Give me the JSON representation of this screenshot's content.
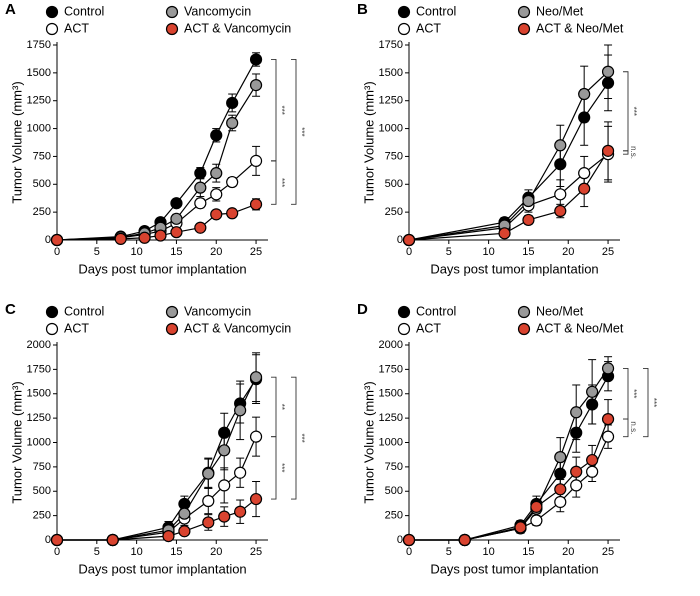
{
  "chart_data": [
    {
      "type": "line",
      "panel": "A",
      "x": [
        0,
        8,
        11,
        13,
        15,
        18,
        20,
        22,
        25
      ],
      "xlim": [
        0,
        26.5
      ],
      "xticks": [
        0,
        5,
        10,
        15,
        20,
        25
      ],
      "ylim": [
        0,
        1750
      ],
      "yticks": [
        0,
        250,
        500,
        750,
        1000,
        1250,
        1500,
        1750
      ],
      "x_label": "Days post tumor implantation",
      "y_label": "Tumor Volume (mm³)",
      "series": [
        {
          "name": "Control",
          "color": "#000000",
          "values": [
            0,
            30,
            80,
            160,
            330,
            600,
            940,
            1230,
            1620
          ],
          "errors": [
            0,
            10,
            15,
            25,
            30,
            50,
            60,
            80,
            60
          ]
        },
        {
          "name": "ACT",
          "color": "#ffffff",
          "values": [
            0,
            20,
            50,
            80,
            150,
            330,
            410,
            520,
            710
          ],
          "errors": [
            0,
            10,
            15,
            20,
            30,
            40,
            60,
            40,
            130
          ]
        },
        {
          "name": "Vancomycin",
          "color": "#999999",
          "values": [
            0,
            25,
            60,
            110,
            190,
            470,
            600,
            1050,
            1390
          ],
          "errors": [
            0,
            10,
            15,
            20,
            40,
            80,
            80,
            70,
            100
          ]
        },
        {
          "name": "ACT & Vancomycin",
          "color": "#d9432f",
          "values": [
            0,
            10,
            20,
            40,
            70,
            110,
            230,
            240,
            320
          ],
          "errors": [
            0,
            5,
            10,
            10,
            15,
            20,
            30,
            30,
            50
          ]
        }
      ],
      "brackets": [
        {
          "label": "***",
          "between": [
            0,
            1
          ]
        },
        {
          "label": "***",
          "between": [
            1,
            3
          ]
        },
        {
          "label": "***",
          "between": [
            0,
            3
          ]
        }
      ]
    },
    {
      "type": "line",
      "panel": "B",
      "x": [
        0,
        12,
        15,
        19,
        22,
        25
      ],
      "xlim": [
        0,
        26.5
      ],
      "xticks": [
        0,
        5,
        10,
        15,
        20,
        25
      ],
      "ylim": [
        0,
        1750
      ],
      "yticks": [
        0,
        250,
        500,
        750,
        1000,
        1250,
        1500,
        1750
      ],
      "x_label": "Days post tumor implantation",
      "y_label": "Tumor Volume (mm³)",
      "series": [
        {
          "name": "Control",
          "color": "#000000",
          "values": [
            0,
            160,
            380,
            680,
            1100,
            1410
          ],
          "errors": [
            0,
            40,
            70,
            200,
            250,
            250
          ]
        },
        {
          "name": "ACT",
          "color": "#ffffff",
          "values": [
            0,
            110,
            310,
            410,
            600,
            770
          ],
          "errors": [
            0,
            30,
            60,
            130,
            150,
            250
          ]
        },
        {
          "name": "Neo/Met",
          "color": "#999999",
          "values": [
            0,
            130,
            350,
            850,
            1310,
            1510
          ],
          "errors": [
            0,
            40,
            60,
            180,
            250,
            240
          ]
        },
        {
          "name": "ACT & Neo/Met",
          "color": "#d9432f",
          "values": [
            0,
            60,
            180,
            260,
            460,
            800
          ],
          "errors": [
            0,
            20,
            40,
            60,
            160,
            260
          ]
        }
      ],
      "brackets": [
        {
          "label": "***",
          "between": [
            2,
            3
          ]
        },
        {
          "label": "n.s.",
          "between": [
            3,
            1
          ]
        }
      ]
    },
    {
      "type": "line",
      "panel": "C",
      "x": [
        0,
        7,
        14,
        16,
        19,
        21,
        23,
        25
      ],
      "xlim": [
        0,
        26.5
      ],
      "xticks": [
        0,
        5,
        10,
        15,
        20,
        25
      ],
      "ylim": [
        0,
        2000
      ],
      "yticks": [
        0,
        250,
        500,
        750,
        1000,
        1250,
        1500,
        1750,
        2000
      ],
      "x_label": "Days post tumor implantation",
      "y_label": "Tumor Volume (mm³)",
      "series": [
        {
          "name": "Control",
          "color": "#000000",
          "values": [
            0,
            0,
            130,
            370,
            690,
            1100,
            1400,
            1650
          ],
          "errors": [
            0,
            0,
            60,
            80,
            150,
            200,
            200,
            250
          ]
        },
        {
          "name": "ACT",
          "color": "#ffffff",
          "values": [
            0,
            0,
            80,
            220,
            400,
            560,
            690,
            1060
          ],
          "errors": [
            0,
            0,
            30,
            70,
            130,
            180,
            150,
            200
          ]
        },
        {
          "name": "Vancomycin",
          "color": "#999999",
          "values": [
            0,
            0,
            100,
            270,
            680,
            920,
            1330,
            1670
          ],
          "errors": [
            0,
            0,
            40,
            60,
            150,
            200,
            300,
            250
          ]
        },
        {
          "name": "ACT & Vancomycin",
          "color": "#d9432f",
          "values": [
            0,
            0,
            40,
            90,
            180,
            240,
            290,
            420
          ],
          "errors": [
            0,
            0,
            20,
            40,
            80,
            100,
            120,
            180
          ]
        }
      ],
      "brackets": [
        {
          "label": "**",
          "between": [
            2,
            1
          ]
        },
        {
          "label": "***",
          "between": [
            1,
            3
          ]
        },
        {
          "label": "***",
          "between": [
            2,
            3
          ]
        }
      ]
    },
    {
      "type": "line",
      "panel": "D",
      "x": [
        0,
        7,
        14,
        16,
        19,
        21,
        23,
        25
      ],
      "xlim": [
        0,
        26.5
      ],
      "xticks": [
        0,
        5,
        10,
        15,
        20,
        25
      ],
      "ylim": [
        0,
        2000
      ],
      "yticks": [
        0,
        250,
        500,
        750,
        1000,
        1250,
        1500,
        1750,
        2000
      ],
      "x_label": "Days post tumor implantation",
      "y_label": "Tumor Volume (mm³)",
      "series": [
        {
          "name": "Control",
          "color": "#000000",
          "values": [
            0,
            0,
            150,
            370,
            680,
            1100,
            1390,
            1680
          ],
          "errors": [
            0,
            0,
            50,
            80,
            200,
            200,
            200,
            150
          ]
        },
        {
          "name": "ACT",
          "color": "#ffffff",
          "values": [
            0,
            0,
            120,
            200,
            390,
            560,
            700,
            1060
          ],
          "errors": [
            0,
            0,
            40,
            50,
            100,
            120,
            100,
            120
          ]
        },
        {
          "name": "Neo/Met",
          "color": "#999999",
          "values": [
            0,
            0,
            120,
            320,
            850,
            1310,
            1520,
            1760
          ],
          "errors": [
            0,
            0,
            50,
            80,
            200,
            280,
            330,
            120
          ]
        },
        {
          "name": "ACT & Neo/Met",
          "color": "#d9432f",
          "values": [
            0,
            0,
            130,
            340,
            520,
            700,
            820,
            1240
          ],
          "errors": [
            0,
            0,
            40,
            70,
            100,
            150,
            150,
            200
          ]
        }
      ],
      "brackets": [
        {
          "label": "***",
          "between": [
            2,
            3
          ]
        },
        {
          "label": "n.s.",
          "between": [
            3,
            1
          ]
        },
        {
          "label": "***",
          "between": [
            2,
            1
          ]
        }
      ]
    }
  ]
}
